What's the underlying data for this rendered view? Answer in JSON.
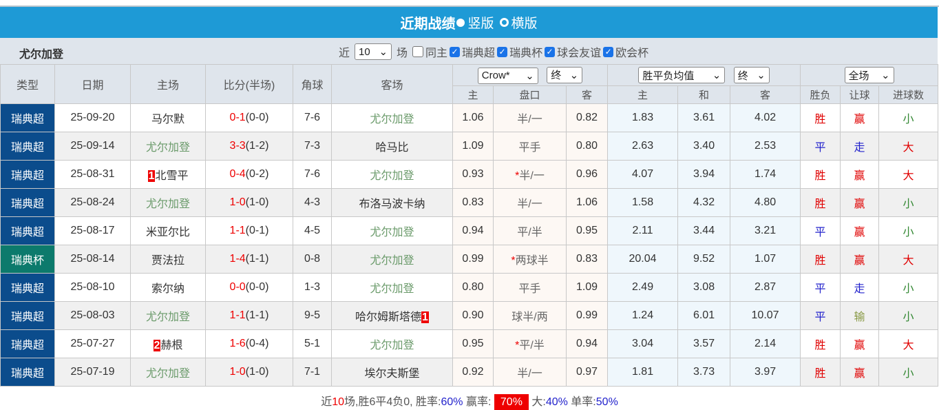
{
  "title": "近期战绩",
  "view_options": [
    {
      "label": "竖版",
      "selected": true
    },
    {
      "label": "横版",
      "selected": false
    }
  ],
  "team": "尤尔加登",
  "filter": {
    "prefix": "近",
    "count": "10",
    "suffix": "场",
    "options": [
      {
        "label": "同主",
        "checked": false
      },
      {
        "label": "瑞典超",
        "checked": true
      },
      {
        "label": "瑞典杯",
        "checked": true
      },
      {
        "label": "球会友谊",
        "checked": true
      },
      {
        "label": "欧会杯",
        "checked": true
      }
    ]
  },
  "headers": {
    "type": "类型",
    "date": "日期",
    "home": "主场",
    "score": "比分(半场)",
    "corners": "角球",
    "away": "客场",
    "company": "Crow*",
    "company_stage": "终",
    "euro": "胜平负均值",
    "euro_stage": "终",
    "scope": "全场",
    "op_home": "主",
    "op_line": "盘口",
    "op_away": "客",
    "eu_home": "主",
    "eu_draw": "和",
    "eu_away": "客",
    "wl": "胜负",
    "ah": "让球",
    "ou": "进球数"
  },
  "colors": {
    "league": "#0b4c8c",
    "cup": "#0c7a6c",
    "team": "#6a9a6a",
    "red": "#e00000",
    "blue": "#2222cc",
    "green": "#338833"
  },
  "rows": [
    {
      "type": "瑞典超",
      "cup": false,
      "date": "25-09-20",
      "home": "马尔默",
      "home_badge": "",
      "home_team": false,
      "ft": "0-1",
      "ht": "(0-0)",
      "corners": "7-6",
      "away": "尤尔加登",
      "away_badge": "",
      "away_team": true,
      "o1": "1.06",
      "star": "",
      "line": "半/一",
      "o2": "0.82",
      "e1": "1.83",
      "ex": "3.61",
      "e2": "4.02",
      "wl": "胜",
      "ah": "赢",
      "ou": "小"
    },
    {
      "type": "瑞典超",
      "cup": false,
      "date": "25-09-14",
      "home": "尤尔加登",
      "home_badge": "",
      "home_team": true,
      "ft": "3-3",
      "ht": "(1-2)",
      "corners": "7-3",
      "away": "哈马比",
      "away_badge": "",
      "away_team": false,
      "o1": "1.09",
      "star": "",
      "line": "平手",
      "o2": "0.80",
      "e1": "2.63",
      "ex": "3.40",
      "e2": "2.53",
      "wl": "平",
      "ah": "走",
      "ou": "大"
    },
    {
      "type": "瑞典超",
      "cup": false,
      "date": "25-08-31",
      "home": "北雪平",
      "home_badge": "1",
      "home_team": false,
      "ft": "0-4",
      "ht": "(0-2)",
      "corners": "7-6",
      "away": "尤尔加登",
      "away_badge": "",
      "away_team": true,
      "o1": "0.93",
      "star": "*",
      "line": "半/一",
      "o2": "0.96",
      "e1": "4.07",
      "ex": "3.94",
      "e2": "1.74",
      "wl": "胜",
      "ah": "赢",
      "ou": "大"
    },
    {
      "type": "瑞典超",
      "cup": false,
      "date": "25-08-24",
      "home": "尤尔加登",
      "home_badge": "",
      "home_team": true,
      "ft": "1-0",
      "ht": "(1-0)",
      "corners": "4-3",
      "away": "布洛马波卡纳",
      "away_badge": "",
      "away_team": false,
      "o1": "0.83",
      "star": "",
      "line": "半/一",
      "o2": "1.06",
      "e1": "1.58",
      "ex": "4.32",
      "e2": "4.80",
      "wl": "胜",
      "ah": "赢",
      "ou": "小"
    },
    {
      "type": "瑞典超",
      "cup": false,
      "date": "25-08-17",
      "home": "米亚尔比",
      "home_badge": "",
      "home_team": false,
      "ft": "1-1",
      "ht": "(0-1)",
      "corners": "4-5",
      "away": "尤尔加登",
      "away_badge": "",
      "away_team": true,
      "o1": "0.94",
      "star": "",
      "line": "平/半",
      "o2": "0.95",
      "e1": "2.11",
      "ex": "3.44",
      "e2": "3.21",
      "wl": "平",
      "ah": "赢",
      "ou": "小"
    },
    {
      "type": "瑞典杯",
      "cup": true,
      "date": "25-08-14",
      "home": "贾法拉",
      "home_badge": "",
      "home_team": false,
      "ft": "1-4",
      "ht": "(1-1)",
      "corners": "0-8",
      "away": "尤尔加登",
      "away_badge": "",
      "away_team": true,
      "o1": "0.99",
      "star": "*",
      "line": "两球半",
      "o2": "0.83",
      "e1": "20.04",
      "ex": "9.52",
      "e2": "1.07",
      "wl": "胜",
      "ah": "赢",
      "ou": "大"
    },
    {
      "type": "瑞典超",
      "cup": false,
      "date": "25-08-10",
      "home": "索尔纳",
      "home_badge": "",
      "home_team": false,
      "ft": "0-0",
      "ht": "(0-0)",
      "corners": "1-3",
      "away": "尤尔加登",
      "away_badge": "",
      "away_team": true,
      "o1": "0.80",
      "star": "",
      "line": "平手",
      "o2": "1.09",
      "e1": "2.49",
      "ex": "3.08",
      "e2": "2.87",
      "wl": "平",
      "ah": "走",
      "ou": "小"
    },
    {
      "type": "瑞典超",
      "cup": false,
      "date": "25-08-03",
      "home": "尤尔加登",
      "home_badge": "",
      "home_team": true,
      "ft": "1-1",
      "ht": "(1-1)",
      "corners": "9-5",
      "away": "哈尔姆斯塔德",
      "away_badge": "1",
      "away_team": false,
      "o1": "0.90",
      "star": "",
      "line": "球半/两",
      "o2": "0.99",
      "e1": "1.24",
      "ex": "6.01",
      "e2": "10.07",
      "wl": "平",
      "ah": "输",
      "ou": "小"
    },
    {
      "type": "瑞典超",
      "cup": false,
      "date": "25-07-27",
      "home": "赫根",
      "home_badge": "2",
      "home_team": false,
      "ft": "1-6",
      "ht": "(0-4)",
      "corners": "5-1",
      "away": "尤尔加登",
      "away_badge": "",
      "away_team": true,
      "o1": "0.95",
      "star": "*",
      "line": "平/半",
      "o2": "0.94",
      "e1": "3.04",
      "ex": "3.57",
      "e2": "2.14",
      "wl": "胜",
      "ah": "赢",
      "ou": "大"
    },
    {
      "type": "瑞典超",
      "cup": false,
      "date": "25-07-19",
      "home": "尤尔加登",
      "home_badge": "",
      "home_team": true,
      "ft": "1-0",
      "ht": "(1-0)",
      "corners": "7-1",
      "away": "埃尔夫斯堡",
      "away_badge": "",
      "away_team": false,
      "o1": "0.92",
      "star": "",
      "line": "半/一",
      "o2": "0.97",
      "e1": "1.81",
      "ex": "3.73",
      "e2": "3.97",
      "wl": "胜",
      "ah": "赢",
      "ou": "小"
    }
  ],
  "summary": {
    "p1": "近",
    "n": "10",
    "p2": "场,胜6平4负0, 胜率:",
    "win_rate": "60%",
    "p3": " 赢率:",
    "cover_rate": "70%",
    "p4": " 大:",
    "over_rate": "40%",
    "p5": " 单率:",
    "odd_rate": "50%"
  }
}
